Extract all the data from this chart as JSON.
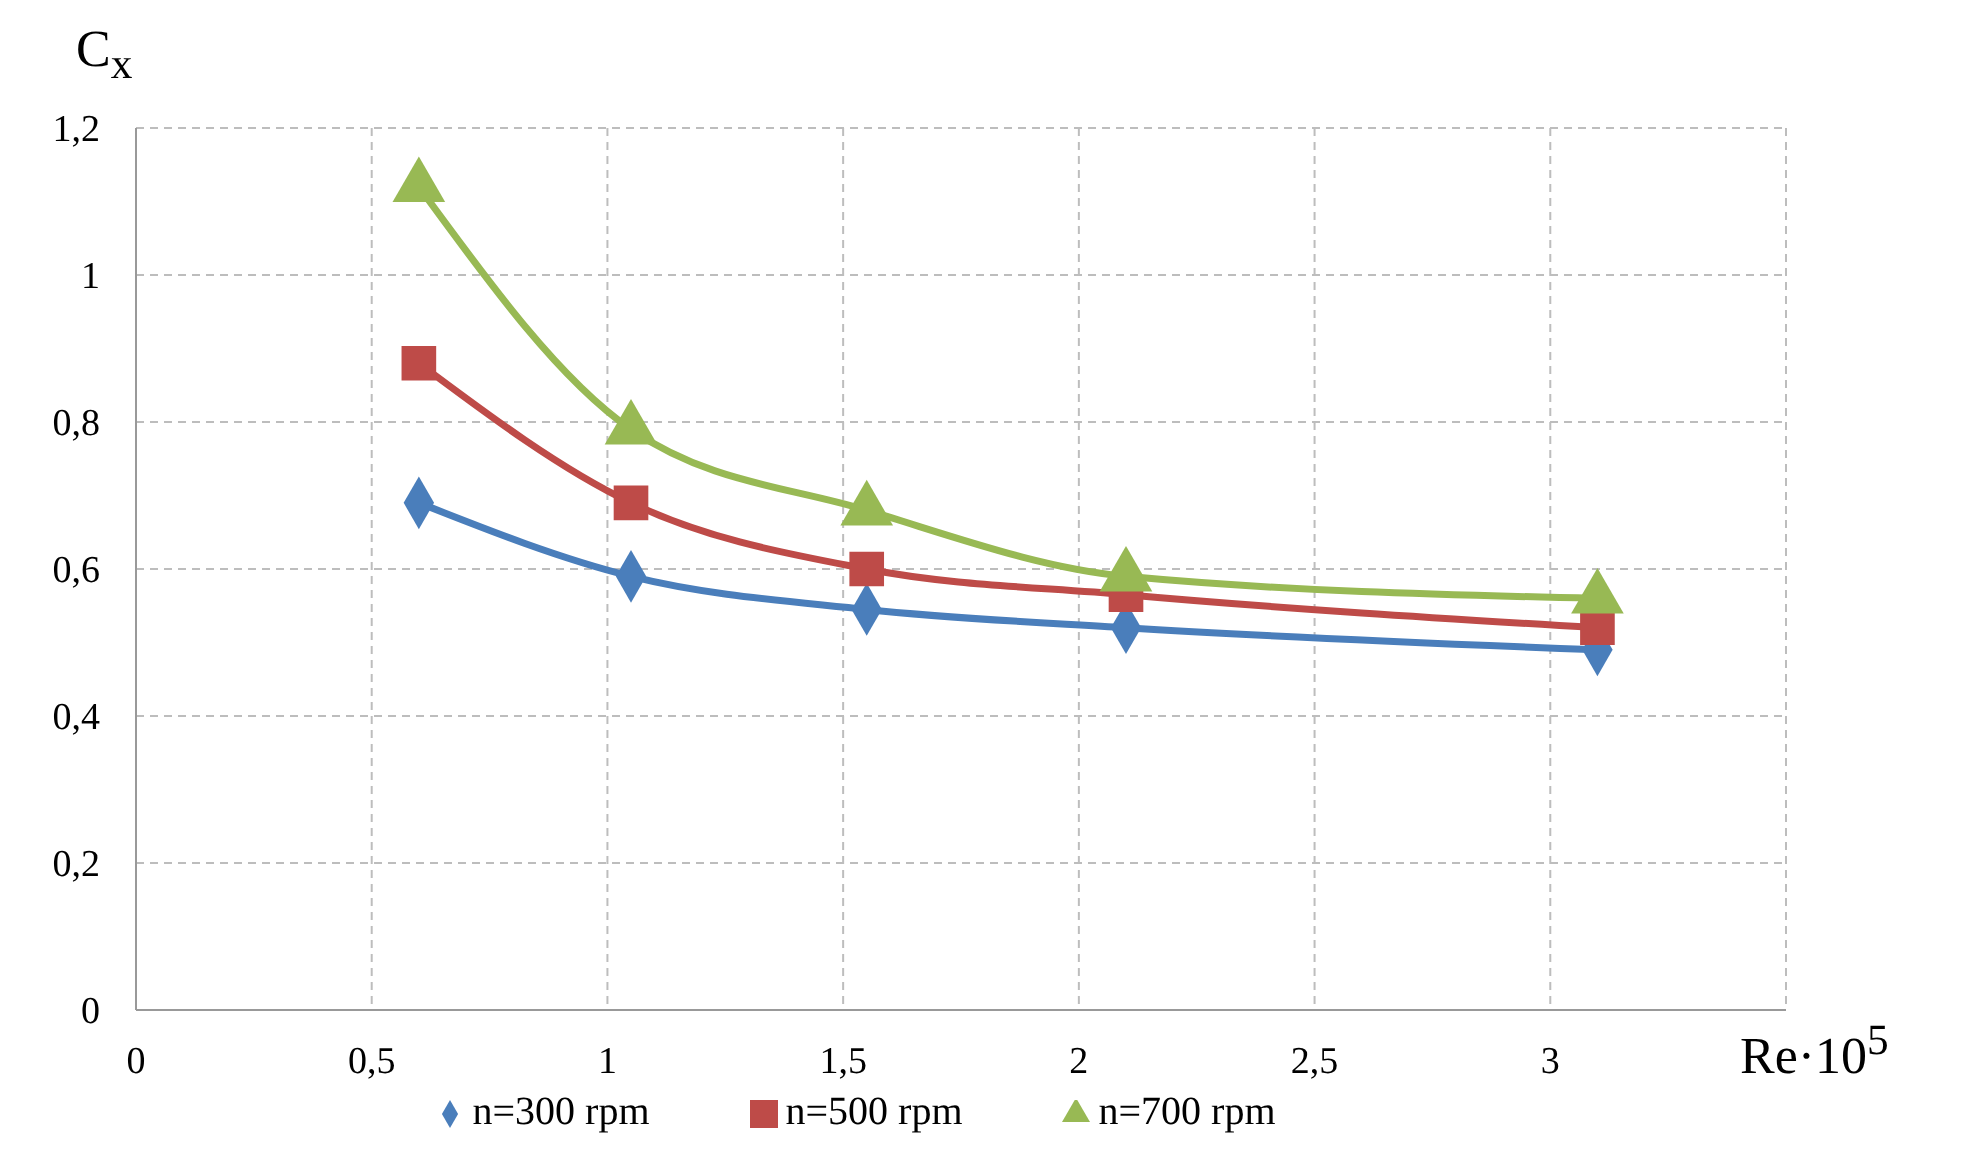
{
  "chart_data": {
    "type": "line",
    "xlabel": "Re·10$^{5}$",
    "ylabel": "C$_{x}$",
    "xlim": [
      0,
      3.5
    ],
    "xticks": [
      0,
      {
        "value": 0.5,
        "label": "0,5"
      },
      1,
      {
        "value": 1.5,
        "label": "1,5"
      },
      2,
      {
        "value": 2.5,
        "label": "2,5"
      },
      3,
      {
        "value": 3.5,
        "label": null
      }
    ],
    "ylim": [
      0,
      1.2
    ],
    "yticks": [
      0,
      {
        "value": 0.2,
        "label": "0,2"
      },
      {
        "value": 0.4,
        "label": "0,4"
      },
      {
        "value": 0.6,
        "label": "0,6"
      },
      {
        "value": 0.8,
        "label": "0,8"
      },
      1,
      {
        "value": 1.2,
        "label": "1,2"
      }
    ],
    "x": [
      0.6,
      1.05,
      1.55,
      2.1,
      3.1
    ],
    "series": [
      {
        "name": "n=300 rpm",
        "color": "#4a7ebb",
        "marker": "diamond",
        "values": [
          0.69,
          0.59,
          0.545,
          0.52,
          0.49
        ]
      },
      {
        "name": "n=500 rpm",
        "color": "#be4b48",
        "marker": "square",
        "values": [
          0.88,
          0.69,
          0.6,
          0.565,
          0.52
        ]
      },
      {
        "name": "n=700 rpm",
        "color": "#98b954",
        "marker": "triangle",
        "values": [
          1.12,
          0.79,
          0.68,
          0.59,
          0.56
        ]
      }
    ],
    "grid": true,
    "line_style": "solid",
    "legend": "bottom"
  }
}
